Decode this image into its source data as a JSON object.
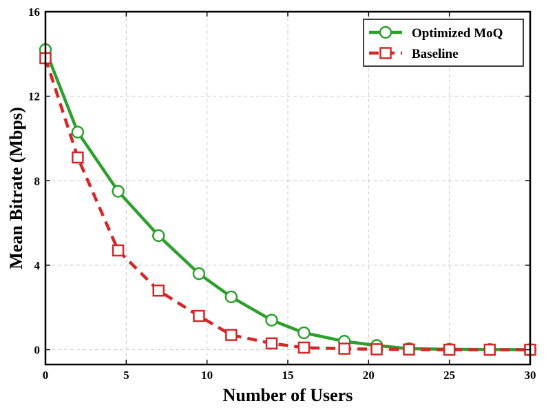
{
  "chart_data": {
    "type": "line",
    "title": "",
    "xlabel": "Number of Users",
    "ylabel": "Mean Bitrate (Mbps)",
    "xlim": [
      0,
      30
    ],
    "ylim": [
      -0.7,
      16
    ],
    "xticks": [
      0,
      5,
      10,
      15,
      20,
      25,
      30
    ],
    "yticks": [
      0,
      4,
      8,
      12,
      16
    ],
    "xtick_labels": [
      "0",
      "5",
      "10",
      "15",
      "20",
      "25",
      "30"
    ],
    "ytick_labels": [
      "0",
      "4",
      "8",
      "12",
      "16"
    ],
    "grid": true,
    "legend_position": "top-right",
    "series": [
      {
        "name": "Optimized MoQ",
        "color": "#2ca02c",
        "line_style": "solid",
        "marker": "circle",
        "x": [
          0,
          2,
          4.5,
          7,
          9.5,
          11.5,
          14,
          16,
          18.5,
          20.5,
          22.5,
          25,
          27.5,
          30
        ],
        "y": [
          14.2,
          10.3,
          7.5,
          5.4,
          3.6,
          2.5,
          1.4,
          0.8,
          0.4,
          0.2,
          0.05,
          0.02,
          0.01,
          0.0
        ]
      },
      {
        "name": "Baseline",
        "color": "#d62728",
        "line_style": "dashed",
        "marker": "square",
        "x": [
          0,
          2,
          4.5,
          7,
          9.5,
          11.5,
          14,
          16,
          18.5,
          20.5,
          22.5,
          25,
          27.5,
          30
        ],
        "y": [
          13.8,
          9.1,
          4.7,
          2.8,
          1.6,
          0.7,
          0.3,
          0.1,
          0.05,
          0.02,
          0.01,
          0.0,
          0.0,
          0.0
        ]
      }
    ]
  }
}
